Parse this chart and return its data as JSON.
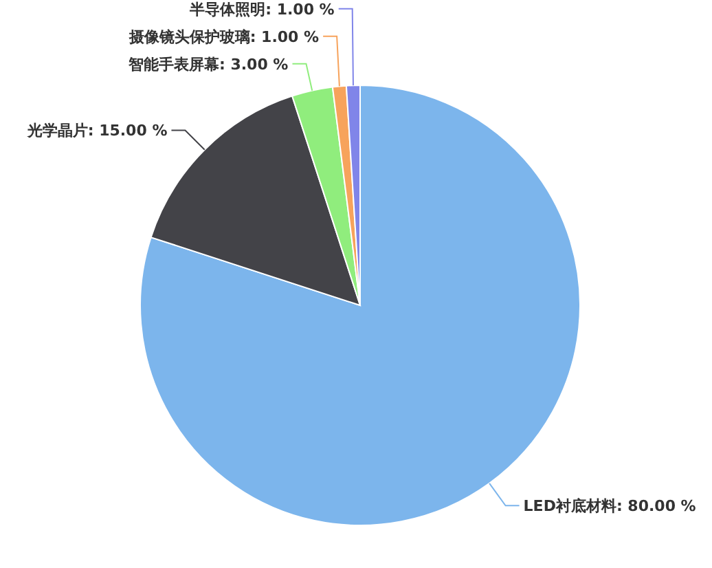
{
  "chart_data": {
    "type": "pie",
    "categories": [
      "LED衬底材料",
      "光学晶片",
      "智能手表屏幕",
      "摄像镜头保护玻璃",
      "半导体照明"
    ],
    "values": [
      80,
      15,
      3,
      1,
      1
    ],
    "colors": [
      "#7cb5ec",
      "#434348",
      "#90ed7d",
      "#f7a35c",
      "#8085e9"
    ],
    "value_labels": [
      "80.00 %",
      "15.00 %",
      "3.00 %",
      "1.00 %",
      "1.00 %"
    ]
  }
}
